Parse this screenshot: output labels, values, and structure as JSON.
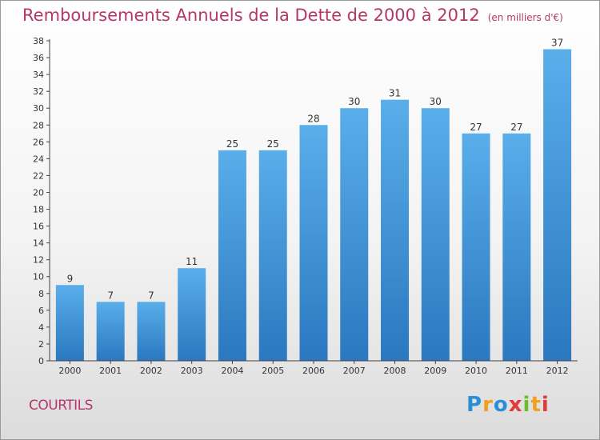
{
  "header": {
    "title": "Remboursements Annuels de la Dette de 2000 à 2012",
    "subtitle": "(en milliers d'€)"
  },
  "footer": {
    "commune": "COURTILS",
    "logo_text": "Proxiti",
    "logo_letters": [
      "P",
      "r",
      "o",
      "x",
      "i",
      "t",
      "i"
    ]
  },
  "colors": {
    "title": "#b5376a",
    "bar_top": "#5aaeea",
    "bar_bottom": "#2a78bf",
    "axis": "#444444"
  },
  "chart_data": {
    "type": "bar",
    "title": "Remboursements Annuels de la Dette de 2000 à 2012",
    "subtitle": "(en milliers d'€)",
    "xlabel": "",
    "ylabel": "",
    "categories": [
      "2000",
      "2001",
      "2002",
      "2003",
      "2004",
      "2005",
      "2006",
      "2007",
      "2008",
      "2009",
      "2010",
      "2011",
      "2012"
    ],
    "values": [
      9,
      7,
      7,
      11,
      25,
      25,
      28,
      30,
      31,
      30,
      27,
      27,
      37
    ],
    "data_labels": [
      "9",
      "7",
      "7",
      "11",
      "25",
      "25",
      "28",
      "30",
      "31",
      "30",
      "27",
      "27",
      "37"
    ],
    "ylim": [
      0,
      38
    ],
    "yticks": [
      0,
      2,
      4,
      6,
      8,
      10,
      12,
      14,
      16,
      18,
      20,
      22,
      24,
      26,
      28,
      30,
      32,
      34,
      36,
      38
    ],
    "grid": false,
    "legend": "none"
  }
}
